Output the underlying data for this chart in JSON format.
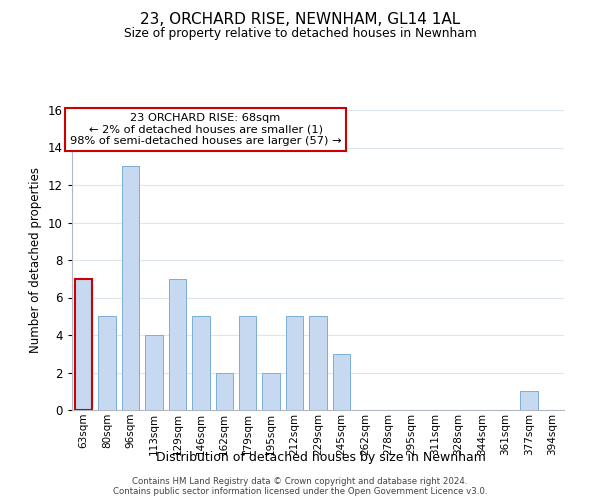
{
  "title": "23, ORCHARD RISE, NEWNHAM, GL14 1AL",
  "subtitle": "Size of property relative to detached houses in Newnham",
  "xlabel": "Distribution of detached houses by size in Newnham",
  "ylabel": "Number of detached properties",
  "categories": [
    "63sqm",
    "80sqm",
    "96sqm",
    "113sqm",
    "129sqm",
    "146sqm",
    "162sqm",
    "179sqm",
    "195sqm",
    "212sqm",
    "229sqm",
    "245sqm",
    "262sqm",
    "278sqm",
    "295sqm",
    "311sqm",
    "328sqm",
    "344sqm",
    "361sqm",
    "377sqm",
    "394sqm"
  ],
  "values": [
    7,
    5,
    13,
    4,
    7,
    5,
    2,
    5,
    2,
    5,
    5,
    3,
    0,
    0,
    0,
    0,
    0,
    0,
    0,
    1,
    0
  ],
  "bar_color": "#c6d9f1",
  "highlight_bar_index": 0,
  "highlight_edge_color": "#cc0000",
  "normal_edge_color": "#7bafd4",
  "annotation_line1": "23 ORCHARD RISE: 68sqm",
  "annotation_line2": "← 2% of detached houses are smaller (1)",
  "annotation_line3": "98% of semi-detached houses are larger (57) →",
  "annotation_box_edge_color": "#cc0000",
  "ylim": [
    0,
    16
  ],
  "yticks": [
    0,
    2,
    4,
    6,
    8,
    10,
    12,
    14,
    16
  ],
  "footer_line1": "Contains HM Land Registry data © Crown copyright and database right 2024.",
  "footer_line2": "Contains public sector information licensed under the Open Government Licence v3.0.",
  "bg_color": "#ffffff",
  "grid_color": "#dce6f1"
}
